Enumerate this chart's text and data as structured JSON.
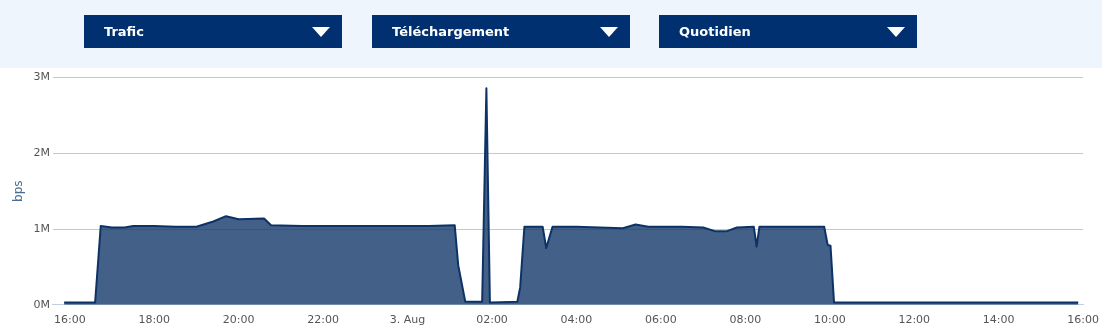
{
  "chart_data": {
    "type": "area",
    "ylabel": "bps",
    "annotations": [
      "Trafic",
      "Téléchargement",
      "Quotidien"
    ],
    "series": [
      {
        "color": "#0d3366",
        "x": [
          "--08-02T15:52",
          "--08-02T16:36",
          "--08-02T16:44",
          "--08-02T17:00",
          "--08-02T17:18",
          "--08-02T17:30",
          "--08-02T18:00",
          "--08-02T18:30",
          "--08-02T19:00",
          "--08-02T19:24",
          "--08-02T19:42",
          "--08-02T20:00",
          "--08-02T20:36",
          "--08-02T20:46",
          "--08-02T21:30",
          "--08-02T22:30",
          "--08-02T23:30",
          "--08-03T00:30",
          "--08-03T01:07",
          "--08-03T01:12",
          "--08-03T01:22",
          "--08-03T01:46",
          "--08-03T01:52",
          "--08-03T01:57",
          "--08-03T02:36",
          "--08-03T02:40",
          "--08-03T02:46",
          "--08-03T03:12",
          "--08-03T03:17",
          "--08-03T03:26",
          "--08-03T04:00",
          "--08-03T05:06",
          "--08-03T05:24",
          "--08-03T05:42",
          "--08-03T06:30",
          "--08-03T07:00",
          "--08-03T07:18",
          "--08-03T07:33",
          "--08-03T07:48",
          "--08-03T08:12",
          "--08-03T08:16",
          "--08-03T08:20",
          "--08-03T09:00",
          "--08-03T09:52",
          "--08-03T09:57",
          "--08-03T10:01",
          "--08-03T10:06",
          "--08-03T12:00",
          "--08-03T14:00",
          "--08-03T15:53"
        ],
        "values": [
          0.03,
          0.03,
          1.04,
          1.02,
          1.02,
          1.04,
          1.04,
          1.03,
          1.03,
          1.1,
          1.17,
          1.13,
          1.14,
          1.05,
          1.04,
          1.04,
          1.04,
          1.04,
          1.05,
          0.52,
          0.04,
          0.04,
          2.86,
          0.03,
          0.04,
          0.23,
          1.03,
          1.03,
          0.75,
          1.03,
          1.03,
          1.01,
          1.06,
          1.03,
          1.03,
          1.02,
          0.97,
          0.97,
          1.02,
          1.03,
          0.77,
          1.03,
          1.03,
          1.03,
          0.79,
          0.78,
          0.03,
          0.03,
          0.03,
          0.03
        ]
      }
    ],
    "xlim": [
      "--08-02T15:36",
      "--08-03T16:00"
    ],
    "xticks": [
      {
        "value": "--08-02T16:00",
        "label": "16:00"
      },
      {
        "value": "--08-02T18:00",
        "label": "18:00"
      },
      {
        "value": "--08-02T20:00",
        "label": "20:00"
      },
      {
        "value": "--08-02T22:00",
        "label": "22:00"
      },
      {
        "value": "--08-03T00:00",
        "label": "3. Aug"
      },
      {
        "value": "--08-03T02:00",
        "label": "02:00"
      },
      {
        "value": "--08-03T04:00",
        "label": "04:00"
      },
      {
        "value": "--08-03T06:00",
        "label": "06:00"
      },
      {
        "value": "--08-03T08:00",
        "label": "08:00"
      },
      {
        "value": "--08-03T10:00",
        "label": "10:00"
      },
      {
        "value": "--08-03T12:00",
        "label": "12:00"
      },
      {
        "value": "--08-03T14:00",
        "label": "14:00"
      },
      {
        "value": "--08-03T16:00",
        "label": "16:00"
      }
    ],
    "ylim": [
      0,
      3
    ],
    "yticks": [
      {
        "value": 0,
        "label": "0M"
      },
      {
        "value": 1,
        "label": "1M"
      },
      {
        "value": 2,
        "label": "2M"
      },
      {
        "value": 3,
        "label": "3M"
      }
    ],
    "grid": "y",
    "legend": false,
    "marker": "none",
    "line_style": "solid"
  }
}
